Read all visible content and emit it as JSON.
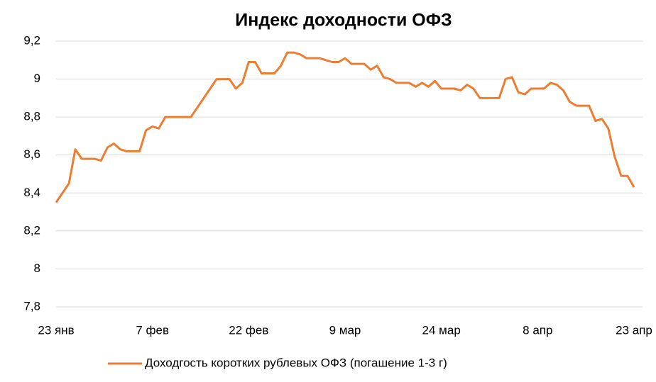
{
  "chart_data": {
    "type": "line",
    "title": "Индекс доходности ОФЗ",
    "categories": [
      "23 янв",
      null,
      null,
      null,
      null,
      null,
      null,
      null,
      null,
      null,
      null,
      null,
      null,
      null,
      null,
      "7 фев",
      null,
      null,
      null,
      null,
      null,
      null,
      null,
      null,
      null,
      null,
      null,
      null,
      null,
      null,
      "22 фев",
      null,
      null,
      null,
      null,
      null,
      null,
      null,
      null,
      null,
      null,
      null,
      null,
      null,
      null,
      "9 мар",
      null,
      null,
      null,
      null,
      null,
      null,
      null,
      null,
      null,
      null,
      null,
      null,
      null,
      null,
      "24 мар",
      null,
      null,
      null,
      null,
      null,
      null,
      null,
      null,
      null,
      null,
      null,
      null,
      null,
      null,
      "8 апр",
      null,
      null,
      null,
      null,
      null,
      null,
      null,
      null,
      null,
      null,
      null,
      null,
      null,
      null,
      "23 апр"
    ],
    "series": [
      {
        "name": "Доходгость коротких рублевых ОФЗ (погашение 1-3 г)",
        "color": "#ed7d31",
        "values": [
          8.35,
          8.4,
          8.45,
          8.63,
          8.58,
          8.58,
          8.58,
          8.57,
          8.64,
          8.66,
          8.63,
          8.62,
          8.62,
          8.62,
          8.73,
          8.75,
          8.74,
          8.8,
          8.8,
          8.8,
          8.8,
          8.8,
          8.85,
          8.9,
          8.95,
          9.0,
          9.0,
          9.0,
          8.95,
          8.98,
          9.09,
          9.09,
          9.03,
          9.03,
          9.03,
          9.07,
          9.14,
          9.14,
          9.13,
          9.11,
          9.11,
          9.11,
          9.1,
          9.09,
          9.09,
          9.11,
          9.08,
          9.08,
          9.08,
          9.05,
          9.07,
          9.01,
          9.0,
          8.98,
          8.98,
          8.98,
          8.96,
          8.98,
          8.96,
          8.99,
          8.95,
          8.95,
          8.95,
          8.94,
          8.97,
          8.95,
          8.9,
          8.9,
          8.9,
          8.9,
          9.0,
          9.01,
          8.93,
          8.92,
          8.95,
          8.95,
          8.95,
          8.98,
          8.97,
          8.94,
          8.88,
          8.86,
          8.86,
          8.86,
          8.78,
          8.79,
          8.74,
          8.59,
          8.49,
          8.49,
          8.43
        ]
      }
    ],
    "ylim": [
      7.8,
      9.2
    ],
    "yticks": [
      {
        "value": 7.8,
        "label": "7,8"
      },
      8,
      {
        "value": 8.2,
        "label": "8,2"
      },
      {
        "value": 8.4,
        "label": "8,4"
      },
      {
        "value": 8.6,
        "label": "8,6"
      },
      {
        "value": 8.8,
        "label": "8,8"
      },
      9,
      {
        "value": 9.2,
        "label": "9,2"
      }
    ],
    "grid": true,
    "legend": "bottom"
  }
}
